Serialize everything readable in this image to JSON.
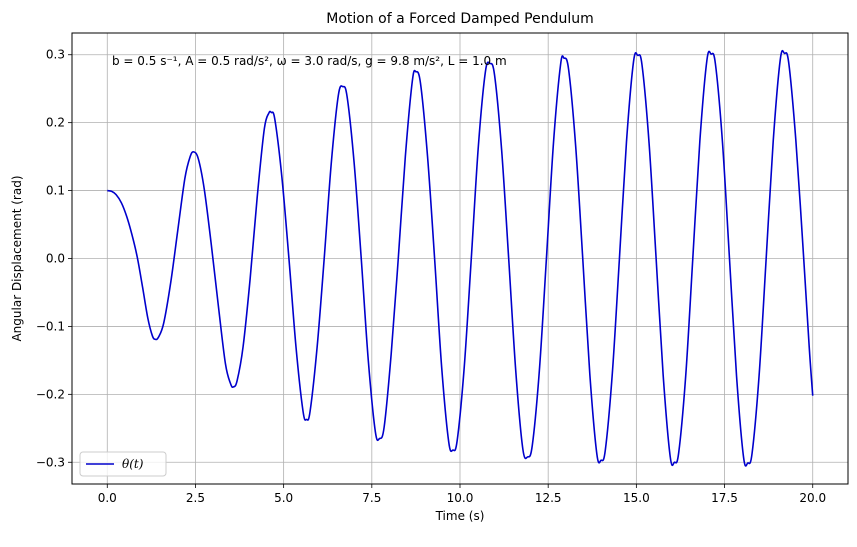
{
  "chart_data": {
    "type": "line",
    "title": "Motion of a Forced Damped Pendulum",
    "xlabel": "Time (s)",
    "ylabel": "Angular Displacement (rad)",
    "xlim": [
      -1.0,
      21.0
    ],
    "ylim": [
      -0.332,
      0.332
    ],
    "xticks": [
      0.0,
      2.5,
      5.0,
      7.5,
      10.0,
      12.5,
      15.0,
      17.5,
      20.0
    ],
    "xtick_labels": [
      "0.0",
      "2.5",
      "5.0",
      "7.5",
      "10.0",
      "12.5",
      "15.0",
      "17.5",
      "20.0"
    ],
    "yticks": [
      -0.3,
      -0.2,
      -0.1,
      0.0,
      0.1,
      0.2,
      0.3
    ],
    "ytick_labels": [
      "−0.3",
      "−0.2",
      "−0.1",
      "0.0",
      "0.1",
      "0.2",
      "0.3"
    ],
    "grid": true,
    "legend_position": "lower-left",
    "annotation": "b = 0.5 s⁻¹, A = 0.5 rad/s², ω = 3.0 rad/s, g = 9.8 m/s², L = 1.0 m",
    "series": [
      {
        "name": "θ(t)",
        "color": "#0000cc",
        "points": [
          [
            0.0,
            0.1
          ],
          [
            0.12,
            0.099
          ],
          [
            0.25,
            0.094
          ],
          [
            0.4,
            0.082
          ],
          [
            0.55,
            0.062
          ],
          [
            0.7,
            0.035
          ],
          [
            0.85,
            0.002
          ],
          [
            1.0,
            -0.042
          ],
          [
            1.15,
            -0.088
          ],
          [
            1.28,
            -0.114
          ],
          [
            1.36,
            -0.119
          ],
          [
            1.45,
            -0.116
          ],
          [
            1.6,
            -0.095
          ],
          [
            1.8,
            -0.035
          ],
          [
            2.0,
            0.042
          ],
          [
            2.2,
            0.118
          ],
          [
            2.35,
            0.15
          ],
          [
            2.45,
            0.157
          ],
          [
            2.58,
            0.147
          ],
          [
            2.75,
            0.102
          ],
          [
            2.95,
            0.02
          ],
          [
            3.15,
            -0.07
          ],
          [
            3.35,
            -0.155
          ],
          [
            3.5,
            -0.185
          ],
          [
            3.58,
            -0.189
          ],
          [
            3.68,
            -0.18
          ],
          [
            3.85,
            -0.13
          ],
          [
            4.05,
            -0.03
          ],
          [
            4.25,
            0.09
          ],
          [
            4.45,
            0.19
          ],
          [
            4.58,
            0.214
          ],
          [
            4.65,
            0.215
          ],
          [
            4.75,
            0.205
          ],
          [
            4.95,
            0.12
          ],
          [
            5.15,
            0.0
          ],
          [
            5.35,
            -0.13
          ],
          [
            5.55,
            -0.225
          ],
          [
            5.65,
            -0.237
          ],
          [
            5.75,
            -0.225
          ],
          [
            5.95,
            -0.13
          ],
          [
            6.15,
            0.0
          ],
          [
            6.35,
            0.14
          ],
          [
            6.55,
            0.24
          ],
          [
            6.68,
            0.253
          ],
          [
            6.8,
            0.238
          ],
          [
            7.0,
            0.14
          ],
          [
            7.2,
            0.0
          ],
          [
            7.4,
            -0.15
          ],
          [
            7.6,
            -0.255
          ],
          [
            7.72,
            -0.265
          ],
          [
            7.85,
            -0.248
          ],
          [
            8.05,
            -0.14
          ],
          [
            8.25,
            0.0
          ],
          [
            8.45,
            0.15
          ],
          [
            8.65,
            0.262
          ],
          [
            8.75,
            0.275
          ],
          [
            8.88,
            0.258
          ],
          [
            9.08,
            0.15
          ],
          [
            9.28,
            0.0
          ],
          [
            9.48,
            -0.16
          ],
          [
            9.68,
            -0.27
          ],
          [
            9.8,
            -0.282
          ],
          [
            9.92,
            -0.268
          ],
          [
            10.12,
            -0.16
          ],
          [
            10.32,
            0.0
          ],
          [
            10.52,
            0.165
          ],
          [
            10.72,
            0.275
          ],
          [
            10.85,
            0.287
          ],
          [
            10.98,
            0.27
          ],
          [
            11.18,
            0.16
          ],
          [
            11.38,
            0.0
          ],
          [
            11.58,
            -0.165
          ],
          [
            11.78,
            -0.28
          ],
          [
            11.92,
            -0.292
          ],
          [
            12.05,
            -0.275
          ],
          [
            12.25,
            -0.165
          ],
          [
            12.45,
            0.0
          ],
          [
            12.65,
            0.17
          ],
          [
            12.85,
            0.285
          ],
          [
            12.95,
            0.295
          ],
          [
            13.08,
            0.278
          ],
          [
            13.28,
            0.165
          ],
          [
            13.48,
            0.0
          ],
          [
            13.68,
            -0.17
          ],
          [
            13.88,
            -0.288
          ],
          [
            14.0,
            -0.297
          ],
          [
            14.12,
            -0.282
          ],
          [
            14.32,
            -0.168
          ],
          [
            14.52,
            0.0
          ],
          [
            14.72,
            0.172
          ],
          [
            14.92,
            0.29
          ],
          [
            15.04,
            0.299
          ],
          [
            15.16,
            0.285
          ],
          [
            15.36,
            0.17
          ],
          [
            15.56,
            0.0
          ],
          [
            15.76,
            -0.172
          ],
          [
            15.96,
            -0.292
          ],
          [
            16.08,
            -0.3
          ],
          [
            16.2,
            -0.286
          ],
          [
            16.4,
            -0.172
          ],
          [
            16.6,
            0.0
          ],
          [
            16.8,
            0.173
          ],
          [
            17.0,
            0.292
          ],
          [
            17.12,
            0.301
          ],
          [
            17.24,
            0.287
          ],
          [
            17.44,
            0.172
          ],
          [
            17.64,
            0.0
          ],
          [
            17.84,
            -0.173
          ],
          [
            18.04,
            -0.293
          ],
          [
            18.16,
            -0.301
          ],
          [
            18.28,
            -0.287
          ],
          [
            18.48,
            -0.172
          ],
          [
            18.68,
            0.0
          ],
          [
            18.88,
            0.173
          ],
          [
            19.08,
            0.293
          ],
          [
            19.2,
            0.302
          ],
          [
            19.32,
            0.288
          ],
          [
            19.52,
            0.175
          ],
          [
            19.72,
            0.02
          ],
          [
            19.9,
            -0.13
          ],
          [
            20.0,
            -0.202
          ]
        ]
      }
    ]
  }
}
